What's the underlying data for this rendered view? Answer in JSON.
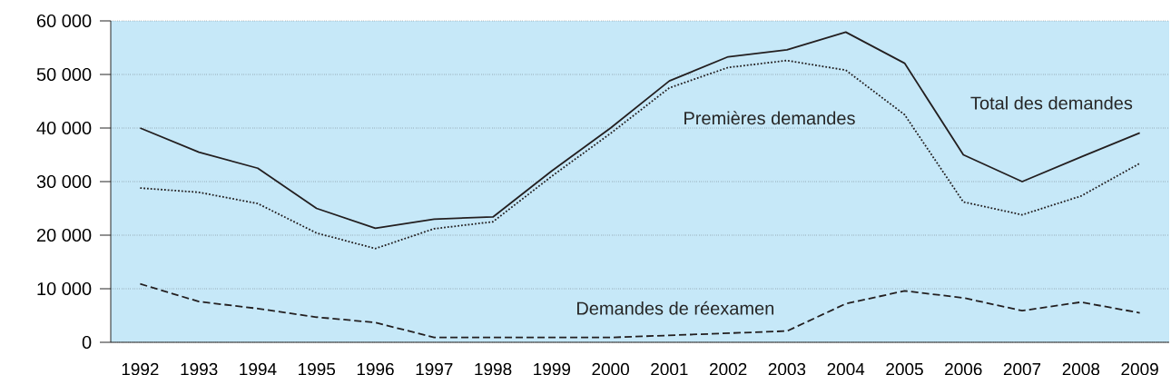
{
  "chart_data": {
    "type": "line",
    "categories": [
      "1992",
      "1993",
      "1994",
      "1995",
      "1996",
      "1997",
      "1998",
      "1999",
      "2000",
      "2001",
      "2002",
      "2003",
      "2004",
      "2005",
      "2006",
      "2007",
      "2008",
      "2009"
    ],
    "series": [
      {
        "name": "Total des demandes",
        "color": "#231f20",
        "line_style": "solid",
        "values": [
          40000,
          35500,
          32500,
          25000,
          21300,
          23000,
          23400,
          32000,
          40000,
          48800,
          53300,
          54600,
          57900,
          52100,
          35000,
          30000,
          34600,
          39100
        ]
      },
      {
        "name": "Premières demandes",
        "color": "#231f20",
        "line_style": "dotted",
        "values": [
          28800,
          28000,
          25900,
          20400,
          17500,
          21200,
          22500,
          31000,
          39000,
          47500,
          51300,
          52600,
          50800,
          42500,
          26200,
          23800,
          27300,
          33400
        ]
      },
      {
        "name": "Demandes de réexamen",
        "color": "#231f20",
        "line_style": "dashed",
        "values": [
          10900,
          7600,
          6300,
          4700,
          3700,
          900,
          900,
          900,
          900,
          1300,
          1700,
          2100,
          7200,
          9600,
          8300,
          5900,
          7500,
          5500
        ]
      }
    ],
    "ylim": [
      0,
      60000
    ],
    "yticks": [
      0,
      {
        "value": 10000,
        "label": "10 000"
      },
      {
        "value": 20000,
        "label": "20 000"
      },
      {
        "value": 30000,
        "label": "30 000"
      },
      {
        "value": 40000,
        "label": "40 000"
      },
      {
        "value": 50000,
        "label": "50 000"
      },
      {
        "value": 60000,
        "label": "60 000"
      }
    ],
    "grid": "y",
    "legend": false,
    "marker": "none"
  }
}
